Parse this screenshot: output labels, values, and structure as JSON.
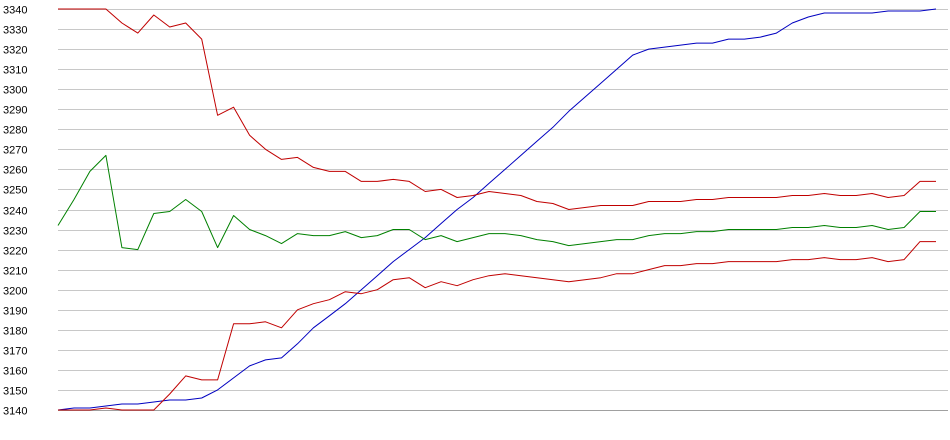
{
  "chart_data": {
    "type": "line",
    "title": "",
    "xlabel": "",
    "ylabel": "",
    "ylim": [
      3140,
      3340
    ],
    "y_ticks": [
      3140,
      3150,
      3160,
      3170,
      3180,
      3190,
      3200,
      3210,
      3220,
      3230,
      3240,
      3250,
      3260,
      3270,
      3280,
      3290,
      3300,
      3310,
      3320,
      3330,
      3340
    ],
    "y_tick_labels": [
      "3140",
      "3150",
      "3160",
      "3170",
      "3180",
      "3190",
      "3200",
      "3210",
      "3220",
      "3230",
      "3240",
      "3250",
      "3260",
      "3270",
      "3280",
      "3290",
      "3300",
      "3310",
      "3320",
      "3330",
      "3340"
    ],
    "grid": true,
    "legend": "none",
    "x": [
      1,
      2,
      3,
      4,
      5,
      6,
      7,
      8,
      9,
      10,
      11,
      12,
      13,
      14,
      15,
      16,
      17,
      18,
      19,
      20,
      21,
      22,
      23,
      24,
      25,
      26,
      27,
      28,
      29,
      30,
      31,
      32,
      33,
      34,
      35,
      36,
      37,
      38,
      39,
      40,
      41,
      42,
      43,
      44,
      45,
      46,
      47,
      48,
      49,
      50,
      51,
      52,
      53,
      54,
      55,
      56
    ],
    "xlim": [
      1,
      56
    ],
    "series": [
      {
        "color": "#0000c0",
        "values": [
          3140,
          3141,
          3141,
          3142,
          3143,
          3143,
          3144,
          3145,
          3145,
          3146,
          3150,
          3156,
          3162,
          3165,
          3166,
          3173,
          3181,
          3187,
          3193,
          3200,
          3207,
          3214,
          3220,
          3226,
          3233,
          3240,
          3246,
          3253,
          3260,
          3267,
          3274,
          3281,
          3289,
          3296,
          3303,
          3310,
          3317,
          3320,
          3321,
          3322,
          3323,
          3323,
          3325,
          3325,
          3326,
          3328,
          3333,
          3336,
          3338,
          3338,
          3338,
          3338,
          3339,
          3339,
          3339,
          3340
        ]
      },
      {
        "color": "#c00000",
        "values": [
          3340,
          3340,
          3340,
          3340,
          3333,
          3328,
          3337,
          3331,
          3333,
          3325,
          3287,
          3291,
          3277,
          3270,
          3265,
          3266,
          3261,
          3259,
          3259,
          3254,
          3254,
          3255,
          3254,
          3249,
          3250,
          3246,
          3247,
          3249,
          3248,
          3247,
          3244,
          3243,
          3240,
          3241,
          3242,
          3242,
          3242,
          3244,
          3244,
          3244,
          3245,
          3245,
          3246,
          3246,
          3246,
          3246,
          3247,
          3247,
          3248,
          3247,
          3247,
          3248,
          3246,
          3247,
          3254,
          3254
        ]
      },
      {
        "color": "#008000",
        "values": [
          3232,
          3245,
          3259,
          3267,
          3221,
          3220,
          3238,
          3239,
          3245,
          3239,
          3221,
          3237,
          3230,
          3227,
          3223,
          3228,
          3227,
          3227,
          3229,
          3226,
          3227,
          3230,
          3230,
          3225,
          3227,
          3224,
          3226,
          3228,
          3228,
          3227,
          3225,
          3224,
          3222,
          3223,
          3224,
          3225,
          3225,
          3227,
          3228,
          3228,
          3229,
          3229,
          3230,
          3230,
          3230,
          3230,
          3231,
          3231,
          3232,
          3231,
          3231,
          3232,
          3230,
          3231,
          3239,
          3239
        ]
      },
      {
        "color": "#c00000",
        "values": [
          3140,
          3140,
          3140,
          3141,
          3140,
          3140,
          3140,
          3148,
          3157,
          3155,
          3155,
          3183,
          3183,
          3184,
          3181,
          3190,
          3193,
          3195,
          3199,
          3198,
          3200,
          3205,
          3206,
          3201,
          3204,
          3202,
          3205,
          3207,
          3208,
          3207,
          3206,
          3205,
          3204,
          3205,
          3206,
          3208,
          3208,
          3210,
          3212,
          3212,
          3213,
          3213,
          3214,
          3214,
          3214,
          3214,
          3215,
          3215,
          3216,
          3215,
          3215,
          3216,
          3214,
          3215,
          3224,
          3224
        ]
      }
    ]
  }
}
